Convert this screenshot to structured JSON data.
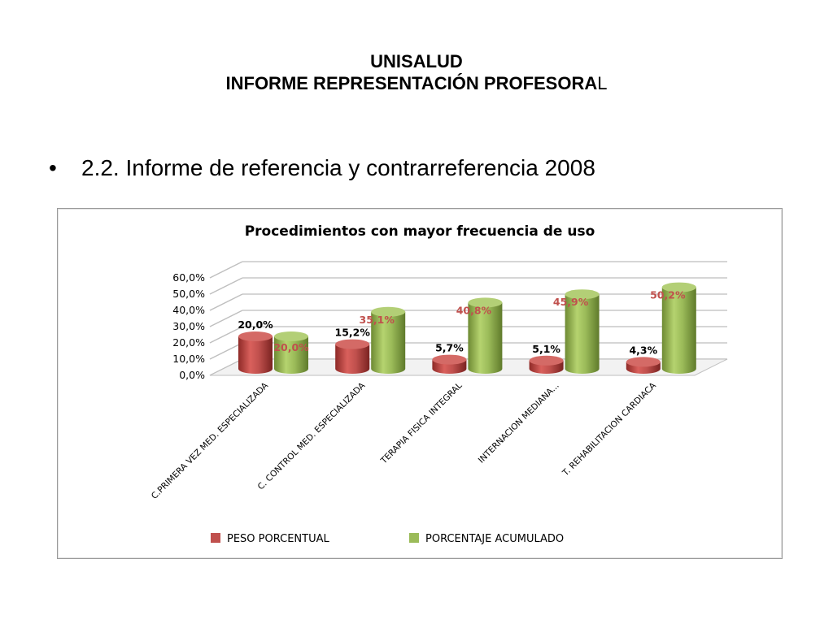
{
  "slide": {
    "title_line1": "UNISALUD",
    "title_line2_main": "INFORME REPRESENTACIÓN PROFESORA",
    "title_line2_last": "L",
    "bullet_symbol": "•",
    "bullet_text": "2.2. Informe de referencia y contrarreferencia 2008"
  },
  "chart_data": {
    "type": "bar",
    "title": "Procedimientos con mayor frecuencia de uso",
    "categories": [
      "C.PRIMERA VEZ MED. ESPECIALIZADA",
      "C. CONTROL MED. ESPECIALIZADA",
      "TERAPIA FISICA INTEGRAL",
      "INTERNACION MEDIANA...",
      "T. REHABILITACION CARDIACA"
    ],
    "series": [
      {
        "name": "PESO PORCENTUAL",
        "color": "#c0504d",
        "values": [
          20.0,
          15.2,
          5.7,
          5.1,
          4.3
        ],
        "labels": [
          "20,0%",
          "15,2%",
          "5,7%",
          "5,1%",
          "4,3%"
        ]
      },
      {
        "name": "PORCENTAJE ACUMULADO",
        "color": "#9bbb59",
        "values": [
          20.0,
          35.1,
          40.8,
          45.9,
          50.2
        ],
        "labels": [
          "20,0%",
          "35,1%",
          "40,8%",
          "45,9%",
          "50,2%"
        ]
      }
    ],
    "ylim": [
      0,
      60
    ],
    "y_ticks": [
      "0,0%",
      "10,0%",
      "20,0%",
      "30,0%",
      "40,0%",
      "50,0%",
      "60,0%"
    ],
    "grid": true,
    "legend_position": "bottom",
    "style": "3d-cylinder"
  }
}
